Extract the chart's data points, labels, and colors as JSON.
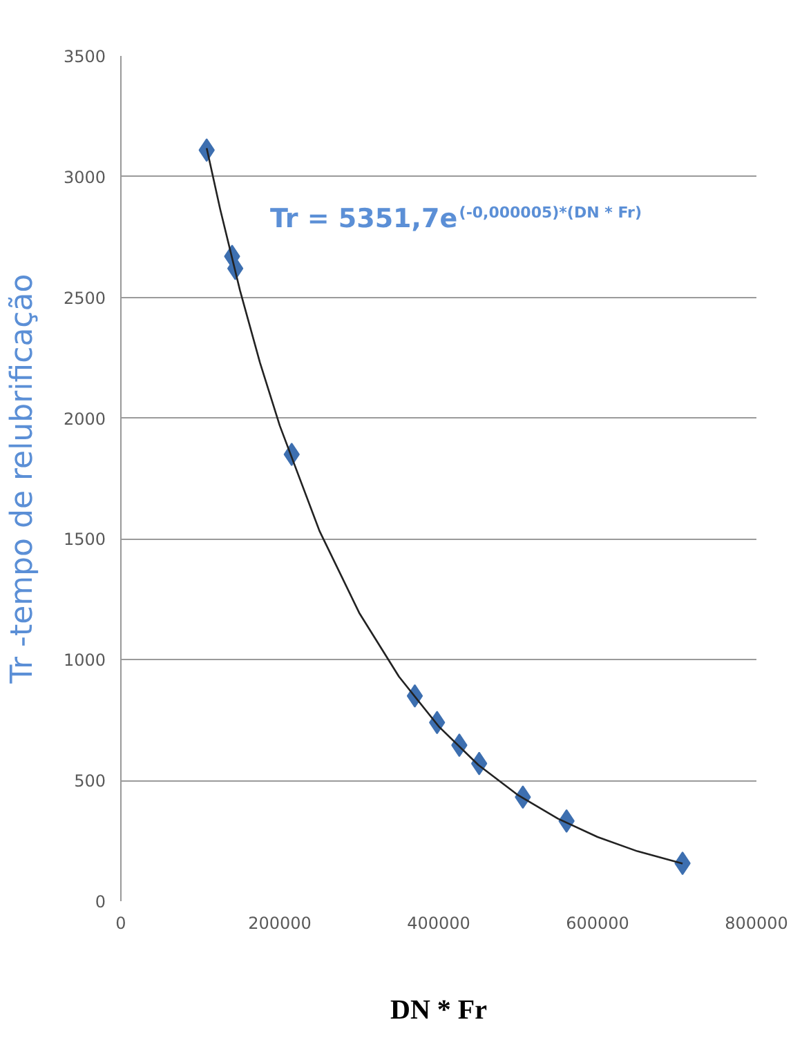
{
  "chart_data": {
    "type": "scatter",
    "xlabel": "DN * Fr",
    "ylabel": "Tr -tempo de relubrificação",
    "annotations": [
      "Tr = 5351,7e$^{(-0,000005)*(DN * Fr)}$"
    ],
    "xlim": [
      0,
      800000
    ],
    "xticks": [
      0,
      200000,
      400000,
      600000,
      800000
    ],
    "ylim": [
      0,
      3500
    ],
    "yticks": [
      0,
      500,
      1000,
      1500,
      2000,
      2500,
      3000,
      3500
    ],
    "grid": "y",
    "marker": "diamond",
    "series": [
      {
        "color": "#3d6fb0",
        "x": [
          108000,
          140000,
          144000,
          215000,
          370000,
          398000,
          426000,
          451000,
          506000,
          561000,
          707000
        ],
        "values": [
          3110,
          2670,
          2620,
          1850,
          850,
          740,
          646,
          570,
          431,
          332,
          157
        ]
      },
      {
        "type": "line",
        "color": "#222222",
        "line_style": "solid",
        "marker": "none",
        "x": [
          108000,
          125000,
          150000,
          175000,
          200000,
          250000,
          300000,
          350000,
          400000,
          450000,
          500000,
          550000,
          600000,
          650000,
          707000
        ],
        "values": [
          3118,
          2865,
          2528,
          2231,
          1969,
          1533,
          1194,
          930,
          724,
          564,
          439,
          342,
          266,
          207,
          156
        ]
      }
    ]
  }
}
